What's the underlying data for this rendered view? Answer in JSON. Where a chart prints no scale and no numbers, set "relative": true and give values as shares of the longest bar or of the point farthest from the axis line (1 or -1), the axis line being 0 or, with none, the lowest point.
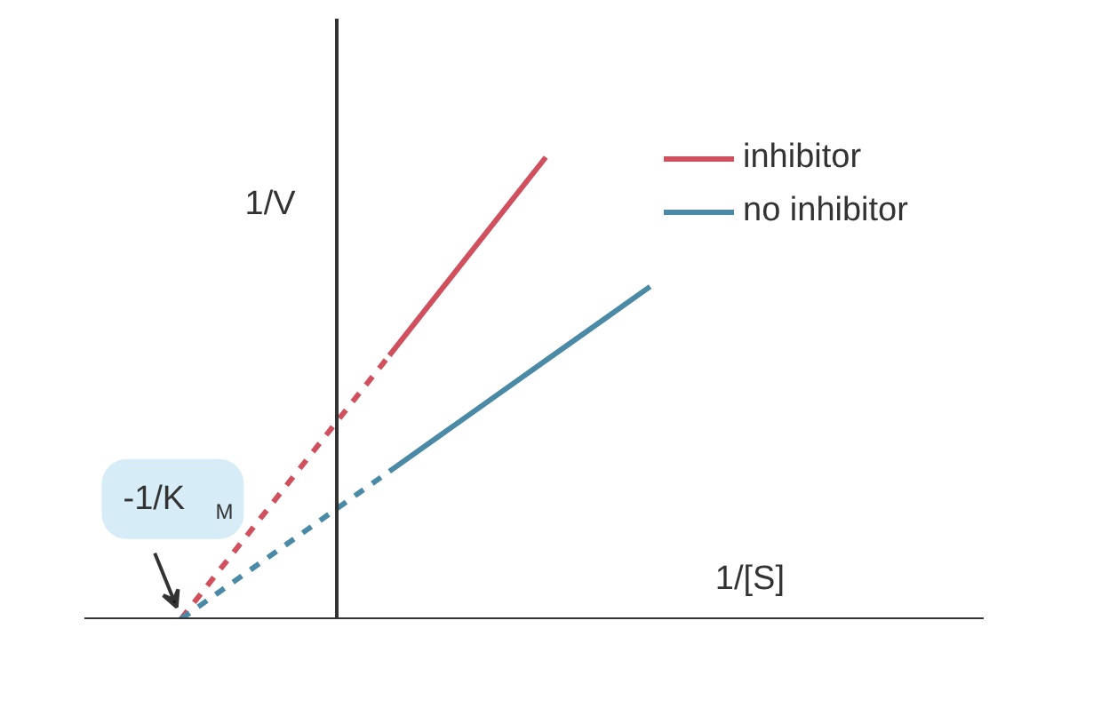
{
  "chart_data": {
    "type": "line",
    "relative": true,
    "xlabel": "1/[S]",
    "ylabel": "1/V",
    "legend": "top right",
    "categories": [
      null,
      null,
      null,
      null,
      null,
      null,
      null,
      null,
      null,
      null,
      null,
      null,
      null,
      null,
      null,
      null,
      null,
      null
    ],
    "series": [
      {
        "color": "#d0505e",
        "line_style": "dashed",
        "values": [
          null,
          null,
          0,
          0.143,
          0.286,
          0.429,
          0.571,
          null,
          null,
          null,
          null,
          null,
          null,
          null,
          null,
          null,
          null,
          null
        ]
      },
      {
        "name": "inhibitor",
        "color": "#d0505e",
        "line_style": "solid",
        "values": [
          null,
          null,
          null,
          null,
          null,
          null,
          0.571,
          0.714,
          0.857,
          1,
          null,
          null,
          null,
          null,
          null,
          null,
          null,
          null
        ]
      },
      {
        "color": "#4a8aa6",
        "line_style": "dashed",
        "values": [
          null,
          null,
          0,
          0.08,
          0.16,
          0.24,
          0.32,
          null,
          null,
          null,
          null,
          null,
          null,
          null,
          null,
          null,
          null,
          null
        ]
      },
      {
        "name": "no inhibitor",
        "color": "#4a8aa6",
        "line_style": "solid",
        "values": [
          null,
          null,
          null,
          null,
          null,
          null,
          0.32,
          0.4,
          0.48,
          0.56,
          0.64,
          0.72,
          null,
          null,
          null,
          null,
          null,
          null
        ]
      }
    ],
    "annotations": [
      "-1/K$_{M}$"
    ]
  }
}
